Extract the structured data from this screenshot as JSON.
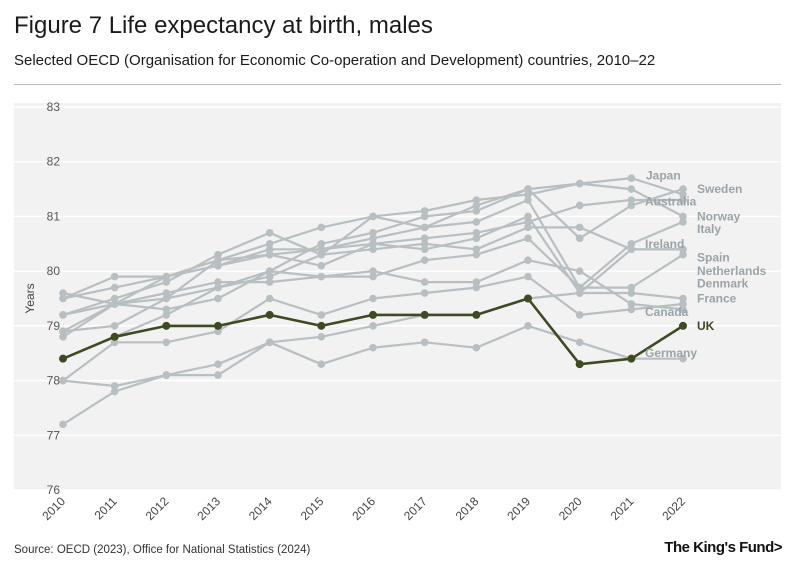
{
  "header": {
    "title": "Figure 7 Life expectancy at birth, males",
    "subtitle": "Selected OECD (Organisation for Economic Co-operation and Development) countries, 2010–22"
  },
  "footer": {
    "source": "Source: OECD (2023), Office for National Statistics (2024)",
    "logo": "The King's Fund",
    "logo_mark": ">"
  },
  "colors": {
    "highlight": "#3e4a22",
    "others": "#b8bfc3",
    "label_others": "#9aa3a8",
    "plot_bg": "#f2f2f2",
    "grid": "#ffffff"
  },
  "chart_data": {
    "type": "line",
    "title": "Figure 7 Life expectancy at birth, males",
    "xlabel": "",
    "ylabel": "Years",
    "ylim": [
      76,
      83
    ],
    "yticks": [
      76,
      77,
      78,
      79,
      80,
      81,
      82,
      83
    ],
    "x": [
      2010,
      2011,
      2012,
      2013,
      2014,
      2015,
      2016,
      2017,
      2018,
      2019,
      2020,
      2021,
      2022
    ],
    "highlight": "UK",
    "series": [
      {
        "name": "Japan",
        "values": [
          79.6,
          79.4,
          79.9,
          80.2,
          80.5,
          80.8,
          81.0,
          81.1,
          81.3,
          81.4,
          81.6,
          81.7,
          81.4
        ]
      },
      {
        "name": "Sweden",
        "values": [
          79.5,
          79.9,
          79.9,
          80.1,
          80.4,
          80.4,
          80.6,
          80.8,
          81.2,
          81.5,
          80.6,
          81.2,
          81.5
        ]
      },
      {
        "name": "Australia",
        "values": [
          79.5,
          79.7,
          79.9,
          80.1,
          80.3,
          80.4,
          80.5,
          80.6,
          80.7,
          80.9,
          81.2,
          81.3,
          81.3
        ]
      },
      {
        "name": "Norway",
        "values": [
          78.9,
          79.0,
          79.5,
          79.7,
          80.0,
          80.5,
          80.7,
          81.0,
          81.1,
          81.5,
          81.6,
          81.5,
          81.0
        ]
      },
      {
        "name": "Italy",
        "values": [
          79.2,
          79.5,
          79.8,
          80.3,
          80.7,
          80.3,
          81.0,
          80.8,
          80.9,
          81.3,
          79.7,
          80.5,
          80.9
        ]
      },
      {
        "name": "Ireland",
        "values": [
          78.4,
          78.8,
          79.2,
          79.7,
          79.9,
          80.3,
          80.4,
          80.5,
          80.4,
          80.8,
          80.8,
          80.4,
          80.4
        ]
      },
      {
        "name": "Spain",
        "values": [
          78.9,
          79.4,
          79.5,
          80.2,
          80.3,
          80.1,
          80.5,
          80.4,
          80.6,
          81.0,
          79.6,
          80.4,
          80.4
        ]
      },
      {
        "name": "Netherlands",
        "values": [
          78.8,
          79.4,
          79.3,
          79.5,
          80.0,
          79.9,
          79.9,
          80.2,
          80.3,
          80.6,
          79.7,
          79.7,
          80.3
        ]
      },
      {
        "name": "Denmark",
        "values": [
          77.2,
          77.8,
          78.1,
          78.3,
          78.7,
          78.8,
          79.0,
          79.2,
          79.2,
          79.5,
          79.6,
          79.6,
          79.5
        ]
      },
      {
        "name": "France",
        "values": [
          78.0,
          78.7,
          78.7,
          78.9,
          79.5,
          79.2,
          79.5,
          79.6,
          79.7,
          79.9,
          79.2,
          79.3,
          79.4
        ]
      },
      {
        "name": "Canada",
        "values": [
          79.2,
          79.4,
          79.6,
          79.8,
          79.8,
          79.9,
          80.0,
          79.8,
          79.8,
          80.2,
          80.0,
          79.4,
          79.3
        ]
      },
      {
        "name": "UK",
        "values": [
          78.4,
          78.8,
          79.0,
          79.0,
          79.2,
          79.0,
          79.2,
          79.2,
          79.2,
          79.5,
          78.3,
          78.4,
          79.0
        ]
      },
      {
        "name": "Germany",
        "values": [
          78.0,
          77.9,
          78.1,
          78.1,
          78.7,
          78.3,
          78.6,
          78.7,
          78.6,
          79.0,
          78.7,
          78.4,
          78.4
        ]
      }
    ],
    "end_labels": [
      {
        "name": "Japan",
        "y": 81.75
      },
      {
        "name": "Sweden",
        "y": 81.5
      },
      {
        "name": "Australia",
        "y": 81.27
      },
      {
        "name": "Norway",
        "y": 81.0
      },
      {
        "name": "Italy",
        "y": 80.77
      },
      {
        "name": "Ireland",
        "y": 80.5
      },
      {
        "name": "Spain",
        "y": 80.25
      },
      {
        "name": "Netherlands",
        "y": 80.0
      },
      {
        "name": "Denmark",
        "y": 79.77
      },
      {
        "name": "France",
        "y": 79.5
      },
      {
        "name": "Canada",
        "y": 79.25
      },
      {
        "name": "UK",
        "y": 79.0
      },
      {
        "name": "Germany",
        "y": 78.5
      }
    ]
  }
}
